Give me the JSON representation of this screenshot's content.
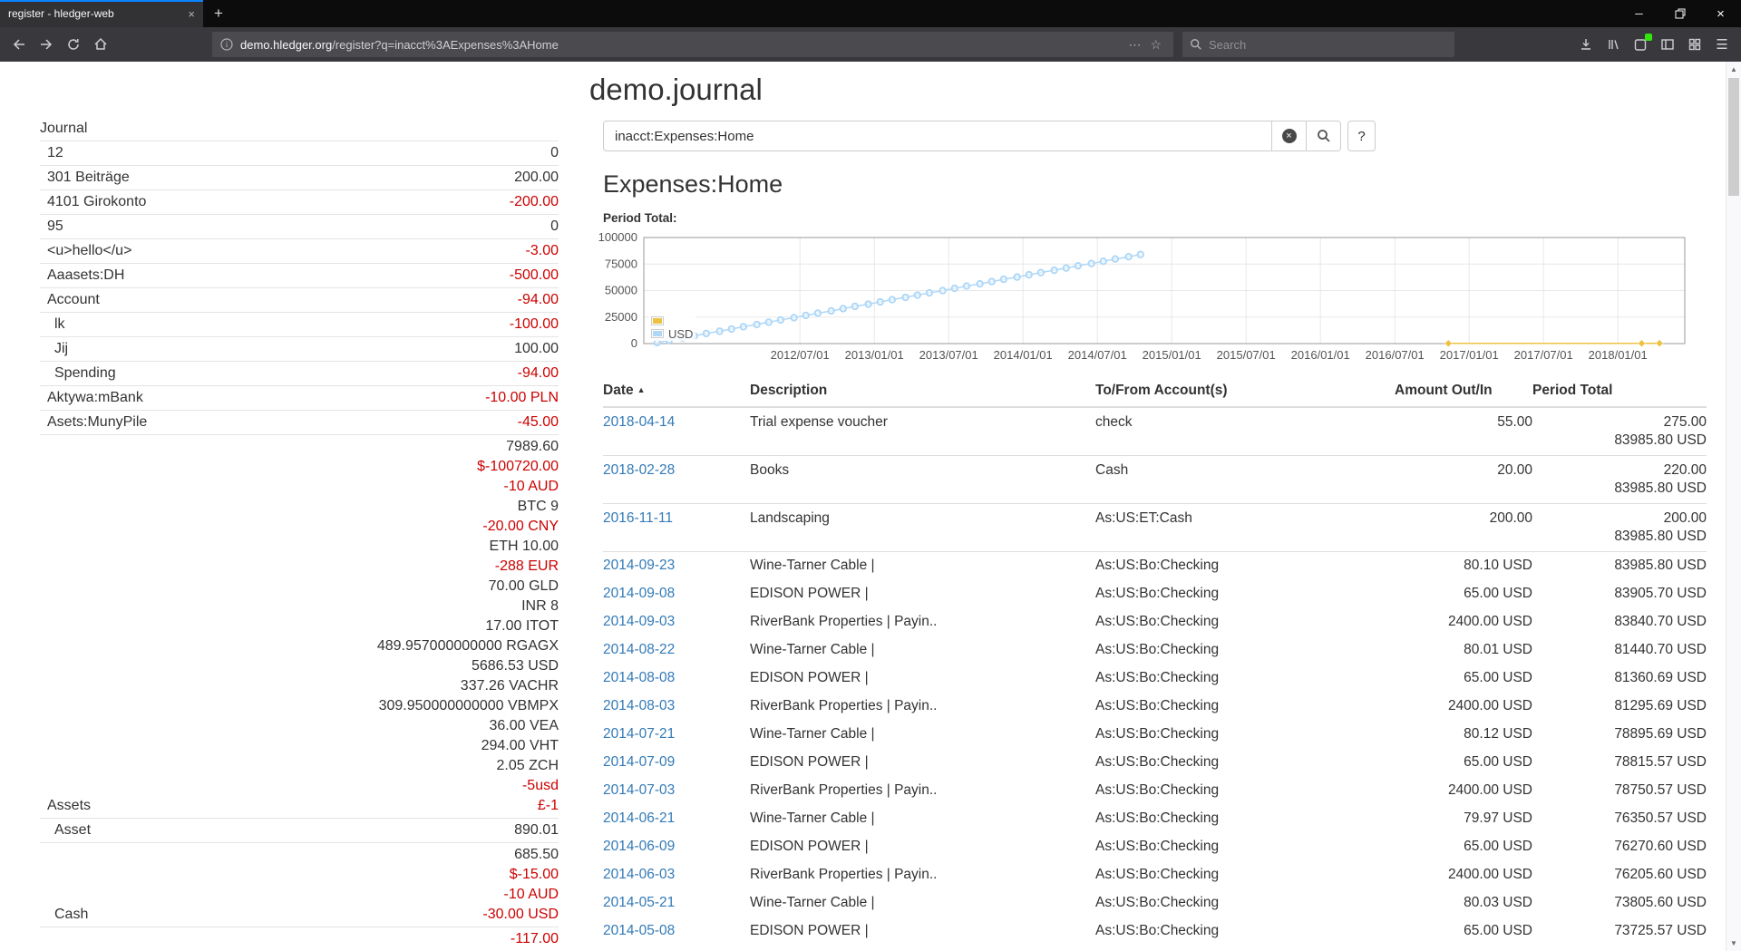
{
  "browser": {
    "tab_title": "register - hledger-web",
    "url_domain": "demo.hledger.org",
    "url_path": "/register?q=inacct%3AExpenses%3AHome",
    "search_placeholder": "Search"
  },
  "icons": {
    "tab_close": "×",
    "new_tab": "+",
    "window_minimize": "─",
    "window_close": "×",
    "url_more": "⋯",
    "url_star": "☆",
    "menu": "☰",
    "help": "?",
    "clear": "×",
    "sort_caret": "▲",
    "scroll_up": "▲",
    "scroll_down": "▼"
  },
  "page": {
    "title": "demo.journal",
    "account_heading": "Expenses:Home",
    "period_total_label": "Period Total:"
  },
  "search": {
    "query": "inacct:Expenses:Home"
  },
  "sidebar": {
    "heading": "Journal",
    "rows": [
      {
        "name": "12",
        "indent": 1,
        "values": [
          {
            "t": "0",
            "neg": false
          }
        ]
      },
      {
        "name": "301 Beiträge",
        "indent": 1,
        "values": [
          {
            "t": "200.00",
            "neg": false
          }
        ]
      },
      {
        "name": "4101 Girokonto",
        "indent": 1,
        "values": [
          {
            "t": "-200.00",
            "neg": true
          }
        ]
      },
      {
        "name": "95",
        "indent": 1,
        "values": [
          {
            "t": "0",
            "neg": false
          }
        ]
      },
      {
        "name": "<u>hello</u>",
        "indent": 1,
        "values": [
          {
            "t": "-3.00",
            "neg": true
          }
        ]
      },
      {
        "name": "Aaasets:DH",
        "indent": 1,
        "values": [
          {
            "t": "-500.00",
            "neg": true
          }
        ]
      },
      {
        "name": "Account",
        "indent": 1,
        "values": [
          {
            "t": "-94.00",
            "neg": true
          }
        ]
      },
      {
        "name": "lk",
        "indent": 2,
        "values": [
          {
            "t": "-100.00",
            "neg": true
          }
        ]
      },
      {
        "name": "Jij",
        "indent": 2,
        "values": [
          {
            "t": "100.00",
            "neg": false
          }
        ]
      },
      {
        "name": "Spending",
        "indent": 2,
        "values": [
          {
            "t": "-94.00",
            "neg": true
          }
        ]
      },
      {
        "name": "Aktywa:mBank",
        "indent": 1,
        "values": [
          {
            "t": "-10.00 PLN",
            "neg": true
          }
        ]
      },
      {
        "name": "Asets:MunyPile",
        "indent": 1,
        "values": [
          {
            "t": "-45.00",
            "neg": true
          }
        ]
      },
      {
        "name": "Assets",
        "indent": 1,
        "values": [
          {
            "t": "7989.60",
            "neg": false
          },
          {
            "t": "$-100720.00",
            "neg": true
          },
          {
            "t": "-10 AUD",
            "neg": true
          },
          {
            "t": "BTC 9",
            "neg": false
          },
          {
            "t": "-20.00 CNY",
            "neg": true
          },
          {
            "t": "ETH 10.00",
            "neg": false
          },
          {
            "t": "-288 EUR",
            "neg": true
          },
          {
            "t": "70.00 GLD",
            "neg": false
          },
          {
            "t": "INR 8",
            "neg": false
          },
          {
            "t": "17.00 ITOT",
            "neg": false
          },
          {
            "t": "489.957000000000 RGAGX",
            "neg": false
          },
          {
            "t": "5686.53 USD",
            "neg": false
          },
          {
            "t": "337.26 VACHR",
            "neg": false
          },
          {
            "t": "309.950000000000 VBMPX",
            "neg": false
          },
          {
            "t": "36.00 VEA",
            "neg": false
          },
          {
            "t": "294.00 VHT",
            "neg": false
          },
          {
            "t": "2.05 ZCH",
            "neg": false
          },
          {
            "t": "-5usd",
            "neg": true
          },
          {
            "t": "£-1",
            "neg": true
          }
        ]
      },
      {
        "name": "Asset",
        "indent": 2,
        "values": [
          {
            "t": "890.01",
            "neg": false
          }
        ]
      },
      {
        "name": "Cash",
        "indent": 2,
        "values": [
          {
            "t": "685.50",
            "neg": false
          },
          {
            "t": "$-15.00",
            "neg": true
          },
          {
            "t": "-10 AUD",
            "neg": true
          },
          {
            "t": "-30.00 USD",
            "neg": true
          }
        ]
      },
      {
        "name": "",
        "indent": 2,
        "values": [
          {
            "t": "-117.00",
            "neg": true
          }
        ]
      }
    ]
  },
  "chart_data": {
    "type": "line",
    "title": "Period Total:",
    "x_axis": {
      "unit": "decimal_year",
      "range": [
        2011.45,
        2018.45
      ],
      "tick_values": [
        2012.5,
        2013.0,
        2013.5,
        2014.0,
        2014.5,
        2015.0,
        2015.5,
        2016.0,
        2016.5,
        2017.0,
        2017.5,
        2018.0
      ],
      "tick_labels": [
        "2012/07/01",
        "2013/01/01",
        "2013/07/01",
        "2014/01/01",
        "2014/07/01",
        "2015/01/01",
        "2015/07/01",
        "2016/01/01",
        "2016/07/01",
        "2017/01/01",
        "2017/07/01",
        "2018/01/01"
      ]
    },
    "y_axis": {
      "range": [
        0,
        100000
      ],
      "ticks": [
        0,
        25000,
        50000,
        75000,
        100000
      ]
    },
    "legend": {
      "position": "left-middle",
      "entries": [
        {
          "label": "",
          "color": "#edc240"
        },
        {
          "label": "USD",
          "color": "#afd8f8"
        }
      ]
    },
    "series": [
      {
        "name": "",
        "color": "#edc240",
        "marker": "diamond",
        "points": [
          [
            2016.86,
            200
          ],
          [
            2018.16,
            220
          ],
          [
            2018.28,
            275
          ]
        ]
      },
      {
        "name": "USD",
        "color": "#afd8f8",
        "marker": "circle",
        "points": [
          [
            2011.54,
            1000
          ],
          [
            2011.62,
            3128
          ],
          [
            2011.71,
            5256
          ],
          [
            2011.79,
            7384
          ],
          [
            2011.87,
            9512
          ],
          [
            2011.96,
            11641
          ],
          [
            2012.04,
            13769
          ],
          [
            2012.12,
            15897
          ],
          [
            2012.21,
            18025
          ],
          [
            2012.29,
            20153
          ],
          [
            2012.37,
            22281
          ],
          [
            2012.46,
            24409
          ],
          [
            2012.54,
            26538
          ],
          [
            2012.62,
            28666
          ],
          [
            2012.71,
            30794
          ],
          [
            2012.79,
            32922
          ],
          [
            2012.87,
            35050
          ],
          [
            2012.96,
            37178
          ],
          [
            2013.04,
            39306
          ],
          [
            2013.12,
            41435
          ],
          [
            2013.21,
            43563
          ],
          [
            2013.29,
            45691
          ],
          [
            2013.37,
            47819
          ],
          [
            2013.46,
            49947
          ],
          [
            2013.54,
            52075
          ],
          [
            2013.62,
            54203
          ],
          [
            2013.71,
            56332
          ],
          [
            2013.79,
            58460
          ],
          [
            2013.87,
            60588
          ],
          [
            2013.96,
            62716
          ],
          [
            2014.04,
            64844
          ],
          [
            2014.12,
            66972
          ],
          [
            2014.21,
            69100
          ],
          [
            2014.29,
            71229
          ],
          [
            2014.37,
            73357
          ],
          [
            2014.46,
            75485
          ],
          [
            2014.54,
            77613
          ],
          [
            2014.62,
            79741
          ],
          [
            2014.71,
            81869
          ],
          [
            2014.79,
            83986
          ]
        ]
      }
    ]
  },
  "register": {
    "columns": [
      "Date",
      "Description",
      "To/From Account(s)",
      "Amount Out/In",
      "Period Total"
    ],
    "sort_column": "Date",
    "rows": [
      {
        "date": "2018-04-14",
        "description": "Trial expense voucher",
        "account": "check",
        "amount": "55.00",
        "period_total": [
          "275.00",
          "83985.80 USD"
        ]
      },
      {
        "date": "2018-02-28",
        "description": "Books",
        "account": "Cash",
        "amount": "20.00",
        "period_total": [
          "220.00",
          "83985.80 USD"
        ]
      },
      {
        "date": "2016-11-11",
        "description": "Landscaping",
        "account": "As:US:ET:Cash",
        "amount": "200.00",
        "period_total": [
          "200.00",
          "83985.80 USD"
        ]
      },
      {
        "date": "2014-09-23",
        "description": "Wine-Tarner Cable |",
        "account": "As:US:Bo:Checking",
        "amount": "80.10 USD",
        "period_total": [
          "83985.80 USD"
        ]
      },
      {
        "date": "2014-09-08",
        "description": "EDISON POWER |",
        "account": "As:US:Bo:Checking",
        "amount": "65.00 USD",
        "period_total": [
          "83905.70 USD"
        ]
      },
      {
        "date": "2014-09-03",
        "description": "RiverBank Properties | Payin..",
        "account": "As:US:Bo:Checking",
        "amount": "2400.00 USD",
        "period_total": [
          "83840.70 USD"
        ]
      },
      {
        "date": "2014-08-22",
        "description": "Wine-Tarner Cable |",
        "account": "As:US:Bo:Checking",
        "amount": "80.01 USD",
        "period_total": [
          "81440.70 USD"
        ]
      },
      {
        "date": "2014-08-08",
        "description": "EDISON POWER |",
        "account": "As:US:Bo:Checking",
        "amount": "65.00 USD",
        "period_total": [
          "81360.69 USD"
        ]
      },
      {
        "date": "2014-08-03",
        "description": "RiverBank Properties | Payin..",
        "account": "As:US:Bo:Checking",
        "amount": "2400.00 USD",
        "period_total": [
          "81295.69 USD"
        ]
      },
      {
        "date": "2014-07-21",
        "description": "Wine-Tarner Cable |",
        "account": "As:US:Bo:Checking",
        "amount": "80.12 USD",
        "period_total": [
          "78895.69 USD"
        ]
      },
      {
        "date": "2014-07-09",
        "description": "EDISON POWER |",
        "account": "As:US:Bo:Checking",
        "amount": "65.00 USD",
        "period_total": [
          "78815.57 USD"
        ]
      },
      {
        "date": "2014-07-03",
        "description": "RiverBank Properties | Payin..",
        "account": "As:US:Bo:Checking",
        "amount": "2400.00 USD",
        "period_total": [
          "78750.57 USD"
        ]
      },
      {
        "date": "2014-06-21",
        "description": "Wine-Tarner Cable |",
        "account": "As:US:Bo:Checking",
        "amount": "79.97 USD",
        "period_total": [
          "76350.57 USD"
        ]
      },
      {
        "date": "2014-06-09",
        "description": "EDISON POWER |",
        "account": "As:US:Bo:Checking",
        "amount": "65.00 USD",
        "period_total": [
          "76270.60 USD"
        ]
      },
      {
        "date": "2014-06-03",
        "description": "RiverBank Properties | Payin..",
        "account": "As:US:Bo:Checking",
        "amount": "2400.00 USD",
        "period_total": [
          "76205.60 USD"
        ]
      },
      {
        "date": "2014-05-21",
        "description": "Wine-Tarner Cable |",
        "account": "As:US:Bo:Checking",
        "amount": "80.03 USD",
        "period_total": [
          "73805.60 USD"
        ]
      },
      {
        "date": "2014-05-08",
        "description": "EDISON POWER |",
        "account": "As:US:Bo:Checking",
        "amount": "65.00 USD",
        "period_total": [
          "73725.57 USD"
        ]
      }
    ]
  }
}
